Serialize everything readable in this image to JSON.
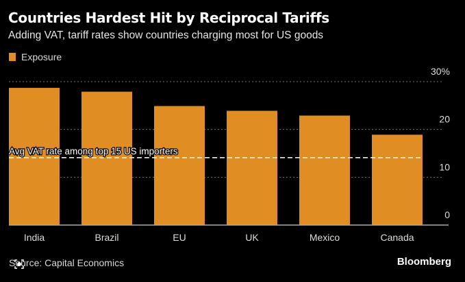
{
  "header": {
    "title": "Countries Hardest Hit by Reciprocal Tariffs",
    "subtitle": "Adding VAT, tariff rates show countries charging most for US goods"
  },
  "legend": {
    "label": "Exposure",
    "color": "#e08d23"
  },
  "footer": {
    "source": "Source: Capital Economics",
    "brand": "Bloomberg"
  },
  "chart_data": {
    "type": "bar",
    "title": "Countries Hardest Hit by Reciprocal Tariffs",
    "subtitle": "Adding VAT, tariff rates show countries charging most for US goods",
    "xlabel": "",
    "ylabel": "",
    "categories": [
      "India",
      "Brazil",
      "EU",
      "UK",
      "Mexico",
      "Canada"
    ],
    "series": [
      {
        "name": "Exposure",
        "color": "#e08d23",
        "values": [
          28.7,
          27.9,
          24.9,
          23.9,
          22.9,
          18.9
        ]
      }
    ],
    "ylim": [
      0,
      30
    ],
    "yticks": [
      0,
      10,
      20,
      30
    ],
    "ytick_labels": [
      "0",
      "10",
      "20",
      "30%"
    ],
    "y_axis_side": "right",
    "grid": true,
    "legend_position": "top-left",
    "reference_line": {
      "label": "Avg VAT rate among top 15 US importers",
      "value": 14.1,
      "style": "dashed",
      "color": "#ffffff"
    }
  }
}
